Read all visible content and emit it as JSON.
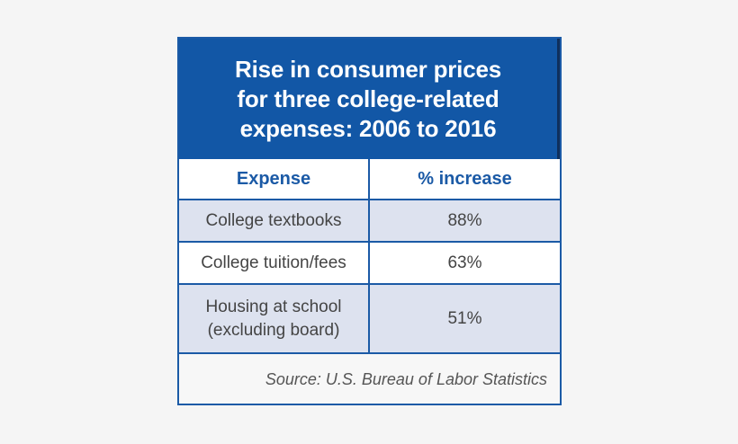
{
  "chart_data": {
    "type": "table",
    "title": "Rise in consumer prices for three college-related expenses: 2006 to 2016",
    "columns": [
      "Expense",
      "% increase"
    ],
    "rows": [
      {
        "expense": "College textbooks",
        "increase": "88%",
        "value": 88
      },
      {
        "expense": "College tuition/fees",
        "increase": "63%",
        "value": 63
      },
      {
        "expense": "Housing at school\n(excluding board)",
        "increase": "51%",
        "value": 51
      }
    ],
    "source": "Source: U.S. Bureau of Labor Statistics"
  },
  "colors": {
    "header_blue": "#1257a6",
    "border_blue": "#1b5aa6",
    "shaded_row": "#dde2ef"
  }
}
